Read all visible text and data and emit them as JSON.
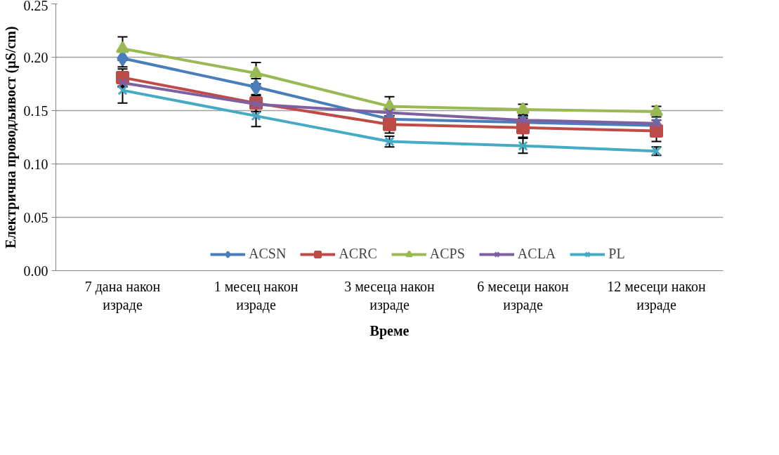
{
  "chart_data": {
    "type": "line",
    "xlabel": "Време",
    "ylabel": "Електрична проводљивост (µS/cm)",
    "categories": [
      "7 дана након израде",
      "1 месец након израде",
      "3 месеца након израде",
      "6 месеци након израде",
      "12 месеци након израде"
    ],
    "ylim": [
      0,
      0.25
    ],
    "yticks": [
      {
        "value": 0,
        "label": "0.00"
      },
      {
        "value": 0.05,
        "label": "0.05"
      },
      {
        "value": 0.1,
        "label": "0.10"
      },
      {
        "value": 0.15,
        "label": "0.15"
      },
      {
        "value": 0.2,
        "label": "0.20"
      },
      {
        "value": 0.25,
        "label": "0.25"
      }
    ],
    "grid": "y",
    "legend": "bottom",
    "line_style": "solid",
    "series": [
      {
        "name": "ACSN",
        "color": "#4a7ebb",
        "marker": "diamond",
        "values": [
          0.199,
          0.172,
          0.142,
          0.139,
          0.136
        ],
        "errors": [
          0.008,
          0.008,
          null,
          0.006,
          null
        ]
      },
      {
        "name": "ACRC",
        "color": "#be4b48",
        "marker": "square",
        "values": [
          0.181,
          0.157,
          0.137,
          0.134,
          0.131
        ],
        "errors": [
          0.008,
          0.008,
          0.008,
          0.009,
          0.01
        ]
      },
      {
        "name": "ACPS",
        "color": "#98b954",
        "marker": "triangle",
        "values": [
          0.208,
          0.185,
          0.154,
          0.151,
          0.149
        ],
        "errors": [
          0.011,
          0.01,
          0.009,
          0.005,
          0.005
        ]
      },
      {
        "name": "ACLA",
        "color": "#7d60a0",
        "marker": "cross",
        "values": [
          0.176,
          0.156,
          0.148,
          0.141,
          0.138
        ],
        "errors": [
          0.004,
          null,
          null,
          0.004,
          null
        ]
      },
      {
        "name": "PL",
        "color": "#46aac5",
        "marker": "cross",
        "values": [
          0.169,
          0.145,
          0.121,
          0.117,
          0.112
        ],
        "errors": [
          0.012,
          0.01,
          0.005,
          0.007,
          0.004
        ]
      }
    ]
  }
}
